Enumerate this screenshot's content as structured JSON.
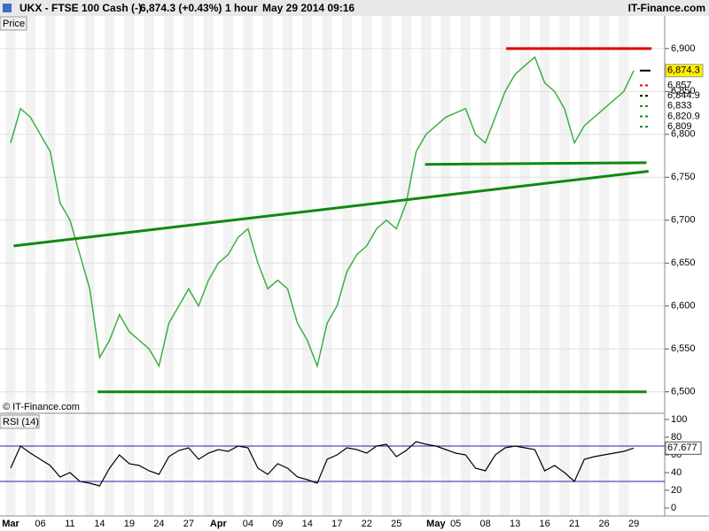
{
  "chart_data": [
    {
      "type": "line",
      "title": "UKX - FTSE 100 Cash (-)",
      "last_price": "6,874.3 (+0.43%)",
      "interval": "1 hour",
      "timestamp": "May 29 2014 09:16",
      "source": "IT-Finance.com",
      "panel_label": "Price",
      "copyright": "© IT-Finance.com",
      "categories": [
        "Mar",
        null,
        null,
        "06",
        null,
        null,
        "11",
        null,
        null,
        "14",
        null,
        null,
        "19",
        null,
        null,
        "24",
        null,
        null,
        "27",
        null,
        null,
        "Apr",
        null,
        null,
        "04",
        null,
        null,
        "09",
        null,
        null,
        "14",
        null,
        null,
        "17",
        null,
        null,
        "22",
        null,
        null,
        "25",
        null,
        null,
        null,
        "May",
        null,
        "05",
        null,
        null,
        "08",
        null,
        null,
        "13",
        null,
        null,
        "16",
        null,
        null,
        "21",
        null,
        null,
        "26",
        null,
        null,
        "29"
      ],
      "series": [
        {
          "color": "#3cb043",
          "values": [
            6790,
            6830,
            6820,
            6800,
            6780,
            6720,
            6700,
            6660,
            6620,
            6540,
            6560,
            6590,
            6570,
            6560,
            6550,
            6530,
            6580,
            6600,
            6620,
            6600,
            6630,
            6650,
            6660,
            6680,
            6690,
            6650,
            6620,
            6630,
            6620,
            6580,
            6560,
            6530,
            6580,
            6600,
            6640,
            6660,
            6670,
            6690,
            6700,
            6690,
            6720,
            6780,
            6800,
            6810,
            6820,
            6825,
            6830,
            6800,
            6790,
            6820,
            6850,
            6870,
            6880,
            6890,
            6860,
            6850,
            6830,
            6790,
            6810,
            6820,
            6830,
            6840,
            6850,
            6874.3
          ]
        }
      ],
      "ylim": [
        6476,
        6938
      ],
      "yticks": [
        {
          "value": 6500,
          "label": "6,500"
        },
        {
          "value": 6550,
          "label": "6,550"
        },
        {
          "value": 6600,
          "label": "6,600"
        },
        {
          "value": 6650,
          "label": "6,650"
        },
        {
          "value": 6700,
          "label": "6,700"
        },
        {
          "value": 6750,
          "label": "6,750"
        },
        {
          "value": 6800,
          "label": "6,800"
        },
        {
          "value": 6850,
          "label": "6,850"
        },
        {
          "value": 6900,
          "label": "6,900"
        }
      ],
      "trend_lines": [
        {
          "color": "#dd0000",
          "x": [
            50.1,
            64.8
          ],
          "y": [
            6900,
            6900
          ]
        },
        {
          "color": "#118811",
          "x": [
            8.8,
            64.3
          ],
          "y": [
            6500,
            6500
          ]
        },
        {
          "color": "#118811",
          "x": [
            0.3,
            64.5
          ],
          "y": [
            6670,
            6757
          ]
        },
        {
          "color": "#118811",
          "x": [
            41.9,
            64.3
          ],
          "y": [
            6765,
            6767
          ]
        }
      ],
      "levels": [
        {
          "value": 6874.3,
          "label": "6,874.3",
          "color": "#000000"
        },
        {
          "value": 6857,
          "label": "6,857",
          "color": "#dd0000"
        },
        {
          "value": 6844.9,
          "label": "6,844.9",
          "color": "#000000"
        },
        {
          "value": 6833,
          "label": "6,833",
          "color": "#118811"
        },
        {
          "value": 6820.9,
          "label": "6,820.9",
          "color": "#118811"
        },
        {
          "value": 6809,
          "label": "6,809",
          "color": "#118811"
        }
      ]
    },
    {
      "type": "line",
      "panel_label": "RSI (14)",
      "value_label": "67.677",
      "series": [
        {
          "color": "#000000",
          "values": [
            45,
            70,
            62,
            55,
            48,
            35,
            40,
            30,
            28,
            25,
            45,
            60,
            50,
            48,
            42,
            38,
            58,
            65,
            68,
            55,
            62,
            66,
            64,
            70,
            68,
            45,
            38,
            50,
            45,
            35,
            32,
            28,
            55,
            60,
            68,
            66,
            62,
            70,
            72,
            58,
            65,
            75,
            72,
            70,
            66,
            62,
            60,
            45,
            42,
            60,
            68,
            70,
            68,
            66,
            42,
            48,
            40,
            30,
            55,
            58,
            60,
            62,
            64,
            67.677
          ]
        }
      ],
      "ylim": [
        -9,
        106
      ],
      "yticks": [
        0,
        20,
        40,
        60,
        80,
        100
      ],
      "bands": [
        70,
        30
      ],
      "band_color": "#2222aa"
    }
  ]
}
